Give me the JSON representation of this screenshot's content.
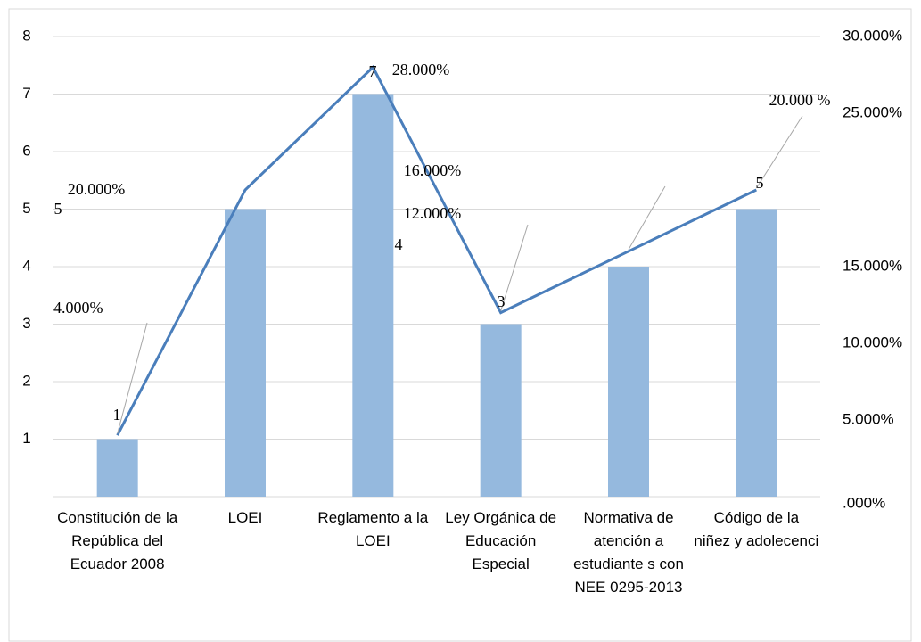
{
  "chart_data": {
    "type": "bar-line",
    "categories": [
      "Constitución de la República del Ecuador 2008",
      "LOEI",
      "Reglamento a la LOEI",
      "Ley Orgánica de Educación Especial",
      "Normativa de atención a estudiante s con NEE 0295-2013",
      "Código de la niñez y adolecenci"
    ],
    "series": [
      {
        "color": "#95b9de",
        "values": [
          1,
          5,
          7,
          3,
          4,
          5
        ]
      },
      {
        "color": "#4a7ebb",
        "axis": "y2",
        "values": [
          4,
          20,
          28,
          12,
          16,
          20
        ],
        "value_labels": [
          "4.000%",
          "20.000%",
          "28.000%",
          "12.000%",
          "16.000%",
          "20.000 %"
        ]
      }
    ],
    "ylim": [
      0,
      8
    ],
    "yticks": [
      1,
      2,
      3,
      4,
      5,
      6,
      7,
      8
    ],
    "y2lim": [
      0,
      30
    ],
    "y2ticks": [
      {
        "value": 0,
        "label": ".000%"
      },
      {
        "value": 5,
        "label": "5.000%"
      },
      {
        "value": 10,
        "label": "10.000%"
      },
      {
        "value": 15,
        "label": "15.000%"
      },
      {
        "value": 25,
        "label": "25.000%"
      },
      {
        "value": 30,
        "label": "30.000%"
      }
    ],
    "grid": true
  }
}
